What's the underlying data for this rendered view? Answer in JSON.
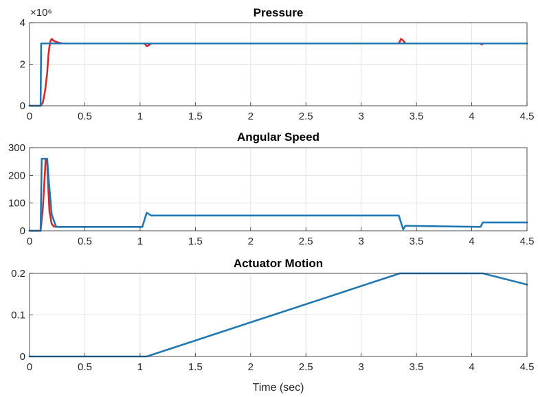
{
  "chart_data": [
    {
      "type": "line",
      "title": "Pressure",
      "xlabel": "",
      "ylabel": "",
      "exponent_label": "×10⁶",
      "xlim": [
        0,
        4.5
      ],
      "ylim": [
        0,
        4
      ],
      "xticks": [
        "0",
        "0.5",
        "1",
        "1.5",
        "2",
        "2.5",
        "3",
        "3.5",
        "4",
        "4.5"
      ],
      "yticks": [
        "0",
        "2",
        "4"
      ],
      "grid": true,
      "colors": [
        "#d62728",
        "#1f77b4"
      ],
      "series": [
        {
          "color": "#d62728",
          "x": [
            0,
            0.1,
            0.12,
            0.14,
            0.16,
            0.17,
            0.18,
            0.19,
            0.2,
            0.22,
            0.26,
            0.3,
            1.04,
            1.06,
            1.08,
            1.1,
            3.34,
            3.36,
            3.38,
            3.4,
            3.42,
            4.08,
            4.09,
            4.1,
            4.5
          ],
          "y": [
            0,
            0,
            0.15,
            0.7,
            1.6,
            2.4,
            2.85,
            3.12,
            3.22,
            3.12,
            3.04,
            3.0,
            3.0,
            2.87,
            2.92,
            3.0,
            3.0,
            3.22,
            3.14,
            3.0,
            3.0,
            3.0,
            2.95,
            3.0,
            3.0
          ]
        },
        {
          "color": "#1f77b4",
          "x": [
            0,
            0.1,
            0.105,
            4.5
          ],
          "y": [
            0,
            0,
            3.0,
            3.0
          ]
        }
      ]
    },
    {
      "type": "line",
      "title": "Angular Speed",
      "xlabel": "",
      "ylabel": "",
      "xlim": [
        0,
        4.5
      ],
      "ylim": [
        0,
        300
      ],
      "xticks": [
        "0",
        "0.5",
        "1",
        "1.5",
        "2",
        "2.5",
        "3",
        "3.5",
        "4",
        "4.5"
      ],
      "yticks": [
        "0",
        "100",
        "200",
        "300"
      ],
      "grid": true,
      "colors": [
        "#d62728",
        "#1f77b4"
      ],
      "series": [
        {
          "color": "#d62728",
          "x": [
            0,
            0.1,
            0.12,
            0.14,
            0.145,
            0.16,
            0.17,
            0.18,
            0.2,
            0.22,
            0.25
          ],
          "y": [
            0,
            0,
            80,
            215,
            260,
            240,
            150,
            70,
            25,
            15,
            15
          ]
        },
        {
          "color": "#1f77b4",
          "x": [
            0,
            0.1,
            0.11,
            0.16,
            0.17,
            0.2,
            0.24,
            1.02,
            1.04,
            1.06,
            1.08,
            1.1,
            3.34,
            3.36,
            3.38,
            3.4,
            4.08,
            4.09,
            4.1,
            4.5
          ],
          "y": [
            0,
            0,
            260,
            260,
            200,
            60,
            14,
            14,
            40,
            65,
            60,
            55,
            55,
            30,
            5,
            18,
            14,
            22,
            30,
            30
          ]
        }
      ]
    },
    {
      "type": "line",
      "title": "Actuator Motion",
      "xlabel": "Time (sec)",
      "ylabel": "",
      "xlim": [
        0,
        4.5
      ],
      "ylim": [
        0,
        0.2
      ],
      "xticks": [
        "0",
        "0.5",
        "1",
        "1.5",
        "2",
        "2.5",
        "3",
        "3.5",
        "4",
        "4.5"
      ],
      "yticks": [
        "0",
        "0.1",
        "0.2"
      ],
      "grid": true,
      "colors": [
        "#1f77b4"
      ],
      "series": [
        {
          "color": "#1f77b4",
          "x": [
            0,
            1.06,
            3.35,
            4.1,
            4.5
          ],
          "y": [
            0,
            0,
            0.2,
            0.2,
            0.173
          ]
        }
      ]
    }
  ]
}
